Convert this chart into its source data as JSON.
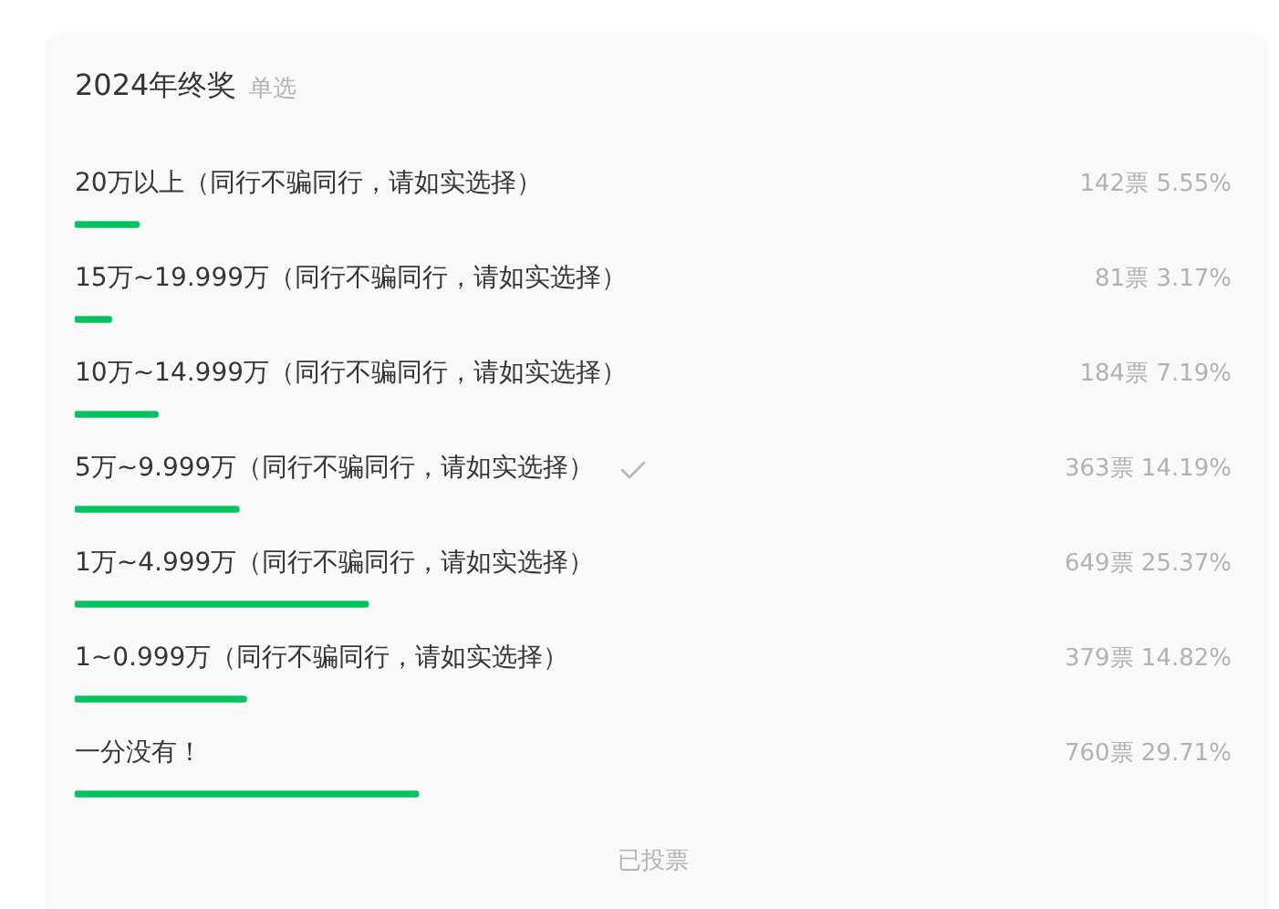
{
  "chart_data": {
    "type": "bar",
    "orientation": "horizontal",
    "title": "2024年终奖",
    "subtitle": "单选",
    "categories": [
      "20万以上（同行不骗同行，请如实选择）",
      "15万~19.999万（同行不骗同行，请如实选择）",
      "10万~14.999万（同行不骗同行，请如实选择）",
      "5万~9.999万（同行不骗同行，请如实选择）",
      "1万~4.999万（同行不骗同行，请如实选择）",
      "1~0.999万（同行不骗同行，请如实选择）",
      "一分没有！"
    ],
    "values": [
      5.55,
      3.17,
      7.19,
      14.19,
      25.37,
      14.82,
      29.71
    ],
    "value_labels": [
      "142票 5.55%",
      "81票 3.17%",
      "184票 7.19%",
      "363票 14.19%",
      "649票 25.37%",
      "379票 14.82%",
      "760票 29.71%"
    ],
    "color": "#07c160",
    "grid": false,
    "legend": false,
    "tick_labels": "y",
    "annotations": [
      "已投票"
    ]
  }
}
